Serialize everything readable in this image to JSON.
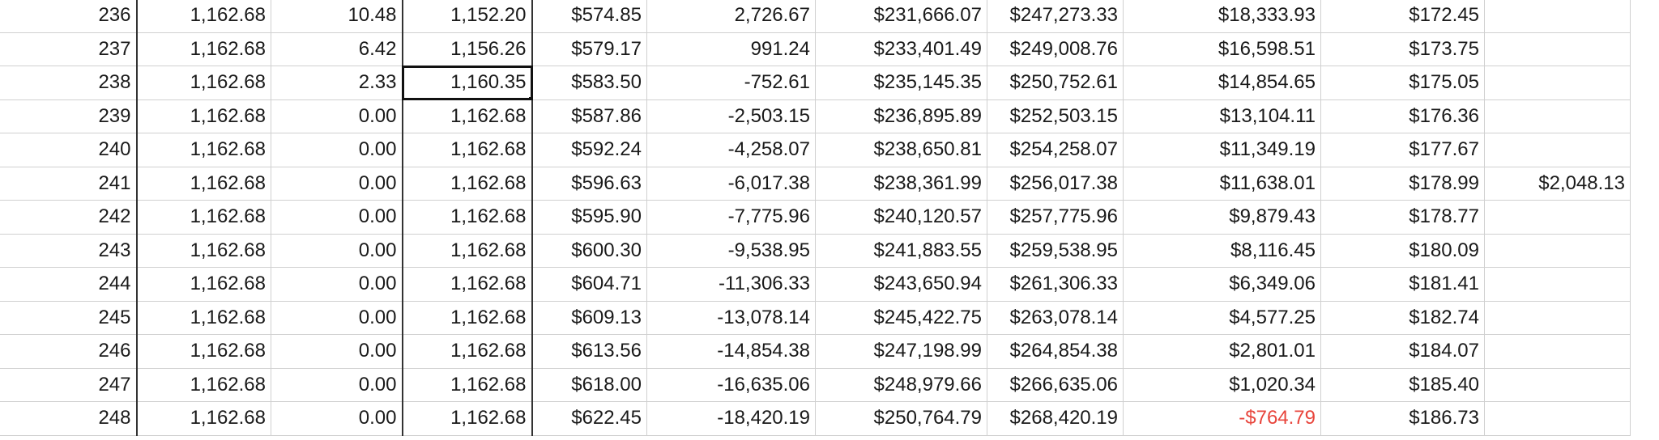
{
  "colors": {
    "negative_text": "#e8453c",
    "grid_line": "#d0d0d0",
    "text": "#1a1a1a",
    "selection": "#111111"
  },
  "selected_cell": {
    "row_index": 2,
    "col_index": 3
  },
  "rows": [
    [
      "236",
      "1,162.68",
      "10.48",
      "1,152.20",
      "$574.85",
      "2,726.67",
      "$231,666.07",
      "$247,273.33",
      "$18,333.93",
      "$172.45",
      ""
    ],
    [
      "237",
      "1,162.68",
      "6.42",
      "1,156.26",
      "$579.17",
      "991.24",
      "$233,401.49",
      "$249,008.76",
      "$16,598.51",
      "$173.75",
      ""
    ],
    [
      "238",
      "1,162.68",
      "2.33",
      "1,160.35",
      "$583.50",
      "-752.61",
      "$235,145.35",
      "$250,752.61",
      "$14,854.65",
      "$175.05",
      ""
    ],
    [
      "239",
      "1,162.68",
      "0.00",
      "1,162.68",
      "$587.86",
      "-2,503.15",
      "$236,895.89",
      "$252,503.15",
      "$13,104.11",
      "$176.36",
      ""
    ],
    [
      "240",
      "1,162.68",
      "0.00",
      "1,162.68",
      "$592.24",
      "-4,258.07",
      "$238,650.81",
      "$254,258.07",
      "$11,349.19",
      "$177.67",
      ""
    ],
    [
      "241",
      "1,162.68",
      "0.00",
      "1,162.68",
      "$596.63",
      "-6,017.38",
      "$238,361.99",
      "$256,017.38",
      "$11,638.01",
      "$178.99",
      "$2,048.13"
    ],
    [
      "242",
      "1,162.68",
      "0.00",
      "1,162.68",
      "$595.90",
      "-7,775.96",
      "$240,120.57",
      "$257,775.96",
      "$9,879.43",
      "$178.77",
      ""
    ],
    [
      "243",
      "1,162.68",
      "0.00",
      "1,162.68",
      "$600.30",
      "-9,538.95",
      "$241,883.55",
      "$259,538.95",
      "$8,116.45",
      "$180.09",
      ""
    ],
    [
      "244",
      "1,162.68",
      "0.00",
      "1,162.68",
      "$604.71",
      "-11,306.33",
      "$243,650.94",
      "$261,306.33",
      "$6,349.06",
      "$181.41",
      ""
    ],
    [
      "245",
      "1,162.68",
      "0.00",
      "1,162.68",
      "$609.13",
      "-13,078.14",
      "$245,422.75",
      "$263,078.14",
      "$4,577.25",
      "$182.74",
      ""
    ],
    [
      "246",
      "1,162.68",
      "0.00",
      "1,162.68",
      "$613.56",
      "-14,854.38",
      "$247,198.99",
      "$264,854.38",
      "$2,801.01",
      "$184.07",
      ""
    ],
    [
      "247",
      "1,162.68",
      "0.00",
      "1,162.68",
      "$618.00",
      "-16,635.06",
      "$248,979.66",
      "$266,635.06",
      "$1,020.34",
      "$185.40",
      ""
    ],
    [
      "248",
      "1,162.68",
      "0.00",
      "1,162.68",
      "$622.45",
      "-18,420.19",
      "$250,764.79",
      "$268,420.19",
      "-$764.79",
      "$186.73",
      ""
    ]
  ]
}
